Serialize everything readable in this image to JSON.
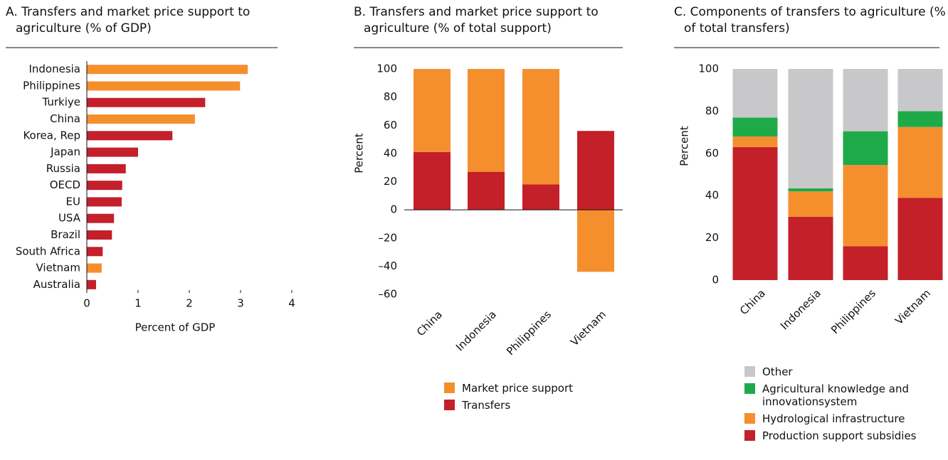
{
  "chart_data": [
    {
      "type": "bar",
      "orientation": "horizontal",
      "title": "A. Transfers and market price support to agriculture (% of GDP)",
      "categories": [
        "Indonesia",
        "Philippines",
        "Turkiye",
        "China",
        "Korea, Rep",
        "Japan",
        "Russia",
        "OECD",
        "EU",
        "USA",
        "Brazil",
        "South Africa",
        "Vietnam",
        "Australia"
      ],
      "values": [
        3.14,
        2.99,
        2.31,
        2.11,
        1.67,
        1.0,
        0.76,
        0.69,
        0.68,
        0.53,
        0.49,
        0.31,
        0.29,
        0.18
      ],
      "colors": [
        "#f58f2e",
        "#f58f2e",
        "#c3202a",
        "#f58f2e",
        "#c3202a",
        "#c3202a",
        "#c3202a",
        "#c3202a",
        "#c3202a",
        "#c3202a",
        "#c3202a",
        "#c3202a",
        "#f58f2e",
        "#c3202a"
      ],
      "xlabel": "Percent of GDP",
      "xlim": [
        0,
        4
      ],
      "xticks": [
        0,
        1,
        2,
        3,
        4
      ]
    },
    {
      "type": "stacked_bar",
      "title": "B. Transfers and market price support to agriculture (% of total support)",
      "categories": [
        "China",
        "Indonesia",
        "Philippines",
        "Vietnam"
      ],
      "series": [
        {
          "name": "Transfers",
          "color": "#c3202a",
          "values": [
            41,
            27,
            18,
            56
          ]
        },
        {
          "name": "Market price support",
          "color": "#f58f2e",
          "values": [
            59,
            73,
            82,
            -44
          ]
        }
      ],
      "ylabel": "Percent",
      "ylim": [
        -60,
        100
      ],
      "yticks": [
        {
          "value": -60,
          "label": "–60"
        },
        {
          "value": -40,
          "label": "–40"
        },
        {
          "value": -20,
          "label": "–20"
        },
        0,
        20,
        40,
        60,
        80,
        100
      ]
    },
    {
      "type": "stacked_bar",
      "title": "C. Components of transfers to agriculture (% of total transfers)",
      "categories": [
        "China",
        "Indonesia",
        "Philippines",
        "Vietnam"
      ],
      "series": [
        {
          "name": "Production support subsidies",
          "color": "#c3202a",
          "values": [
            63,
            30,
            16,
            39
          ]
        },
        {
          "name": "Hydrological infrastructure",
          "color": "#f58f2e",
          "values": [
            5,
            12,
            38.5,
            33.5
          ]
        },
        {
          "name": "Agricultural knowledge and innovationsystem",
          "color": "#1faa4a",
          "values": [
            9,
            1.5,
            16,
            7.5
          ]
        },
        {
          "name": "Other",
          "color": "#c8c8ca",
          "values": [
            23,
            56.5,
            29.5,
            20
          ]
        }
      ],
      "ylabel": "Percent",
      "ylim": [
        0,
        100
      ],
      "yticks": [
        0,
        20,
        40,
        60,
        80,
        100
      ]
    }
  ]
}
